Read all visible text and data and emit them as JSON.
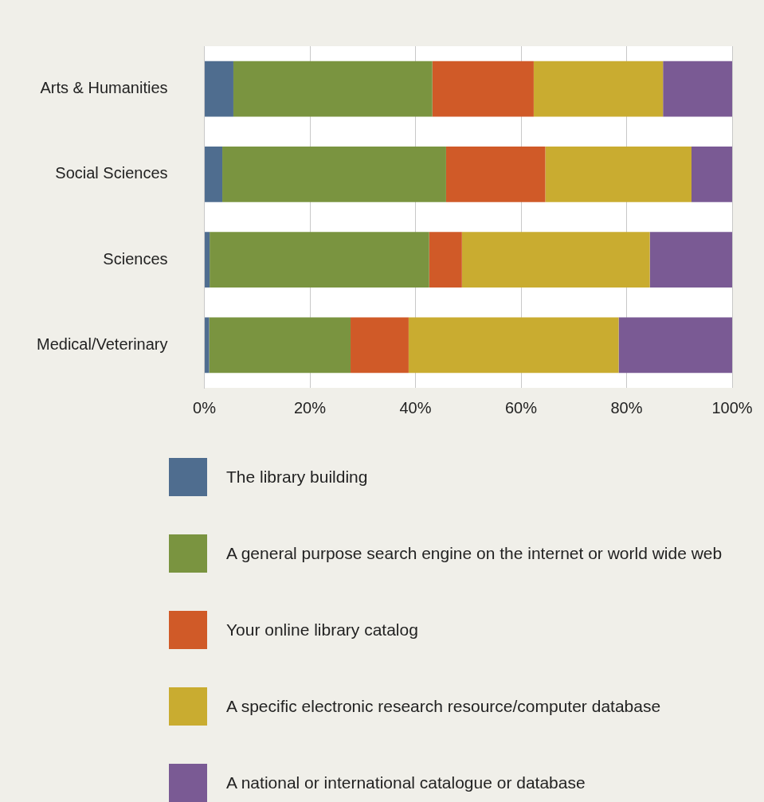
{
  "chart_data": {
    "type": "bar",
    "orientation": "horizontal",
    "stacked": true,
    "categories": [
      "Arts & Humanities",
      "Social Sciences",
      "Sciences",
      "Medical/Veterinary"
    ],
    "series": [
      {
        "name": "The library building",
        "color": "#4f6d8f",
        "values": [
          5.5,
          3.4,
          1.0,
          0.9
        ]
      },
      {
        "name": "A general purpose search engine on the internet or world wide web",
        "color": "#7a9440",
        "values": [
          37.7,
          42.4,
          41.6,
          26.8
        ]
      },
      {
        "name": "Your online library catalog",
        "color": "#d05a28",
        "values": [
          19.2,
          18.8,
          6.2,
          11.0
        ]
      },
      {
        "name": "A specific electronic research resource/computer database",
        "color": "#c9ac30",
        "values": [
          24.5,
          27.7,
          35.6,
          39.8
        ]
      },
      {
        "name": "A national or international catalogue or database",
        "color": "#7a5a94",
        "values": [
          13.1,
          7.7,
          15.6,
          21.5
        ]
      }
    ],
    "xlim": [
      0,
      100
    ],
    "xticks": [
      {
        "value": 0,
        "label": "0%"
      },
      {
        "value": 20,
        "label": "20%"
      },
      {
        "value": 40,
        "label": "40%"
      },
      {
        "value": 60,
        "label": "60%"
      },
      {
        "value": 80,
        "label": "80%"
      },
      {
        "value": 100,
        "label": "100%"
      }
    ],
    "grid": "x",
    "legend": "bottom"
  }
}
